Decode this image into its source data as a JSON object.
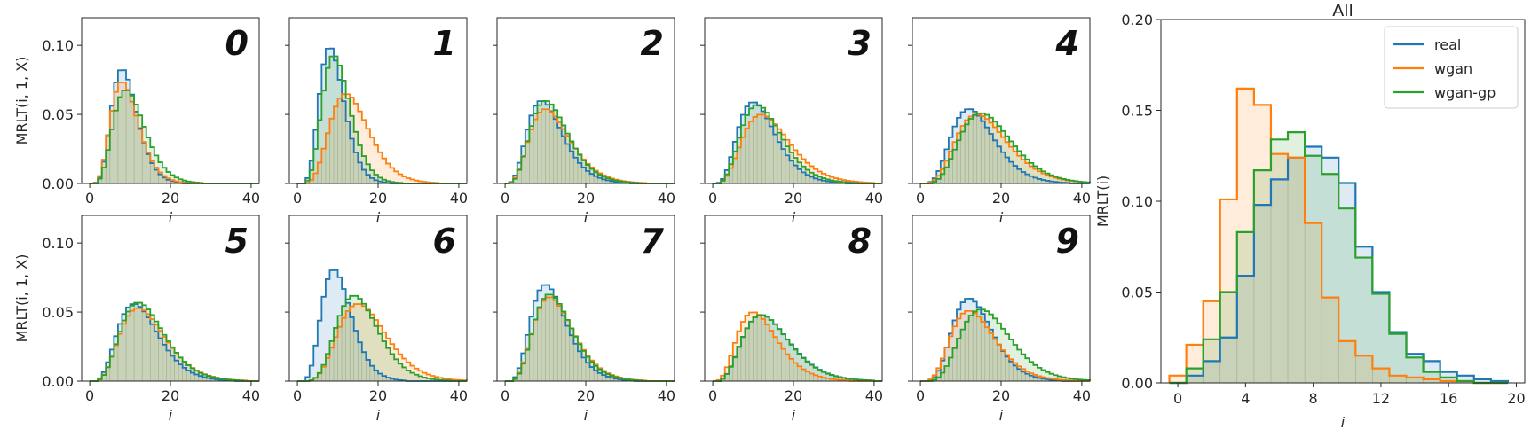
{
  "colors": {
    "real": "#1f77b4",
    "wgan": "#ff7f0e",
    "wgan-gp": "#2ca02c"
  },
  "small_multiples": {
    "ylabel": "MRLT(i, 1, X)",
    "xlabel": "i",
    "x_ticks": [
      "0",
      "20",
      "40"
    ],
    "y_ticks": [
      "0.00",
      "0.05",
      "0.10"
    ],
    "digit_labels": [
      "0",
      "1",
      "2",
      "3",
      "4",
      "5",
      "6",
      "7",
      "8",
      "9"
    ]
  },
  "summary": {
    "title": "All",
    "xlabel": "i",
    "ylabel": "MRLT(i)",
    "x_ticks": [
      "0",
      "4",
      "8",
      "12",
      "16",
      "20"
    ],
    "y_ticks": [
      "0.00",
      "0.05",
      "0.10",
      "0.15",
      "0.20"
    ],
    "legend": [
      "real",
      "wgan",
      "wgan-gp"
    ]
  },
  "chart_data": [
    {
      "type": "area",
      "title": "0",
      "xlim": [
        -2,
        42
      ],
      "ylim": [
        0,
        0.12
      ],
      "distribution": "gamma-shaped histogram, unit bins",
      "series": [
        {
          "name": "real",
          "peak": 8,
          "peak_value": 0.083,
          "right_tail": 0.45
        },
        {
          "name": "wgan",
          "peak": 8,
          "peak_value": 0.074,
          "right_tail": 0.55
        },
        {
          "name": "wgan-gp",
          "peak": 9,
          "peak_value": 0.068,
          "right_tail": 0.65
        }
      ]
    },
    {
      "type": "area",
      "title": "1",
      "xlim": [
        -2,
        42
      ],
      "ylim": [
        0,
        0.12
      ],
      "distribution": "gamma-shaped histogram, unit bins",
      "series": [
        {
          "name": "real",
          "peak": 8,
          "peak_value": 0.099,
          "right_tail": 0.4
        },
        {
          "name": "wgan",
          "peak": 12,
          "peak_value": 0.065,
          "right_tail": 0.7
        },
        {
          "name": "wgan-gp",
          "peak": 9,
          "peak_value": 0.093,
          "right_tail": 0.45
        }
      ]
    },
    {
      "type": "area",
      "title": "2",
      "xlim": [
        -2,
        42
      ],
      "ylim": [
        0,
        0.12
      ],
      "distribution": "gamma-shaped histogram, unit bins",
      "series": [
        {
          "name": "real",
          "peak": 9,
          "peak_value": 0.06,
          "right_tail": 1.0
        },
        {
          "name": "wgan",
          "peak": 10,
          "peak_value": 0.054,
          "right_tail": 1.2
        },
        {
          "name": "wgan-gp",
          "peak": 10,
          "peak_value": 0.06,
          "right_tail": 0.95
        }
      ]
    },
    {
      "type": "area",
      "title": "3",
      "xlim": [
        -2,
        42
      ],
      "ylim": [
        0,
        0.12
      ],
      "distribution": "gamma-shaped histogram, unit bins",
      "series": [
        {
          "name": "real",
          "peak": 10,
          "peak_value": 0.059,
          "right_tail": 0.95
        },
        {
          "name": "wgan",
          "peak": 12,
          "peak_value": 0.05,
          "right_tail": 1.3
        },
        {
          "name": "wgan-gp",
          "peak": 11,
          "peak_value": 0.057,
          "right_tail": 1.0
        }
      ]
    },
    {
      "type": "area",
      "title": "4",
      "xlim": [
        -2,
        42
      ],
      "ylim": [
        0,
        0.12
      ],
      "distribution": "gamma-shaped histogram, unit bins",
      "series": [
        {
          "name": "real",
          "peak": 12,
          "peak_value": 0.054,
          "right_tail": 0.95
        },
        {
          "name": "wgan",
          "peak": 14,
          "peak_value": 0.05,
          "right_tail": 1.2
        },
        {
          "name": "wgan-gp",
          "peak": 15,
          "peak_value": 0.051,
          "right_tail": 1.05
        }
      ]
    },
    {
      "type": "area",
      "title": "5",
      "xlim": [
        -2,
        42
      ],
      "ylim": [
        0,
        0.12
      ],
      "distribution": "gamma-shaped histogram, unit bins",
      "series": [
        {
          "name": "real",
          "peak": 11,
          "peak_value": 0.056,
          "right_tail": 1.0
        },
        {
          "name": "wgan",
          "peak": 12,
          "peak_value": 0.053,
          "right_tail": 1.1
        },
        {
          "name": "wgan-gp",
          "peak": 12,
          "peak_value": 0.057,
          "right_tail": 1.0
        }
      ]
    },
    {
      "type": "area",
      "title": "6",
      "xlim": [
        -2,
        42
      ],
      "ylim": [
        0,
        0.12
      ],
      "distribution": "gamma-shaped histogram, unit bins",
      "series": [
        {
          "name": "real",
          "peak": 9,
          "peak_value": 0.081,
          "right_tail": 0.55
        },
        {
          "name": "wgan",
          "peak": 15,
          "peak_value": 0.056,
          "right_tail": 0.85
        },
        {
          "name": "wgan-gp",
          "peak": 14,
          "peak_value": 0.062,
          "right_tail": 0.65
        }
      ]
    },
    {
      "type": "area",
      "title": "7",
      "xlim": [
        -2,
        42
      ],
      "ylim": [
        0,
        0.12
      ],
      "distribution": "gamma-shaped histogram, unit bins",
      "series": [
        {
          "name": "real",
          "peak": 10,
          "peak_value": 0.07,
          "right_tail": 0.8
        },
        {
          "name": "wgan",
          "peak": 11,
          "peak_value": 0.061,
          "right_tail": 0.9
        },
        {
          "name": "wgan-gp",
          "peak": 11,
          "peak_value": 0.063,
          "right_tail": 0.8
        }
      ]
    },
    {
      "type": "area",
      "title": "8",
      "xlim": [
        -2,
        42
      ],
      "ylim": [
        0,
        0.12
      ],
      "distribution": "gamma-shaped histogram, unit bins",
      "series": [
        {
          "name": "real",
          "peak": 12,
          "peak_value": 0.048,
          "right_tail": 1.3
        },
        {
          "name": "wgan",
          "peak": 10,
          "peak_value": 0.05,
          "right_tail": 1.2
        },
        {
          "name": "wgan-gp",
          "peak": 12,
          "peak_value": 0.048,
          "right_tail": 1.25
        }
      ]
    },
    {
      "type": "area",
      "title": "9",
      "xlim": [
        -2,
        42
      ],
      "ylim": [
        0,
        0.12
      ],
      "distribution": "gamma-shaped histogram, unit bins",
      "series": [
        {
          "name": "real",
          "peak": 12,
          "peak_value": 0.06,
          "right_tail": 0.75
        },
        {
          "name": "wgan",
          "peak": 12,
          "peak_value": 0.051,
          "right_tail": 1.05
        },
        {
          "name": "wgan-gp",
          "peak": 15,
          "peak_value": 0.052,
          "right_tail": 0.95
        }
      ]
    },
    {
      "type": "area",
      "title": "All",
      "xlabel": "i",
      "ylabel": "MRLT(i)",
      "xlim": [
        -1,
        20.5
      ],
      "ylim": [
        0,
        0.2
      ],
      "legend_position": "top-right",
      "x": [
        0,
        1,
        2,
        3,
        4,
        5,
        6,
        7,
        8,
        9,
        10,
        11,
        12,
        13,
        14,
        15,
        16,
        17,
        18,
        19
      ],
      "series": [
        {
          "name": "real",
          "values": [
            0.0,
            0.004,
            0.012,
            0.025,
            0.059,
            0.098,
            0.112,
            0.124,
            0.13,
            0.124,
            0.11,
            0.075,
            0.05,
            0.028,
            0.016,
            0.012,
            0.006,
            0.004,
            0.002,
            0.001
          ]
        },
        {
          "name": "wgan",
          "values": [
            0.004,
            0.021,
            0.045,
            0.101,
            0.162,
            0.153,
            0.126,
            0.124,
            0.088,
            0.047,
            0.023,
            0.015,
            0.008,
            0.004,
            0.003,
            0.002,
            0.001,
            0.001,
            0.0,
            0.0
          ]
        },
        {
          "name": "wgan-gp",
          "values": [
            0.0,
            0.008,
            0.024,
            0.05,
            0.083,
            0.117,
            0.134,
            0.138,
            0.125,
            0.115,
            0.096,
            0.069,
            0.049,
            0.027,
            0.014,
            0.006,
            0.003,
            0.001,
            0.0,
            0.0
          ]
        }
      ]
    }
  ]
}
